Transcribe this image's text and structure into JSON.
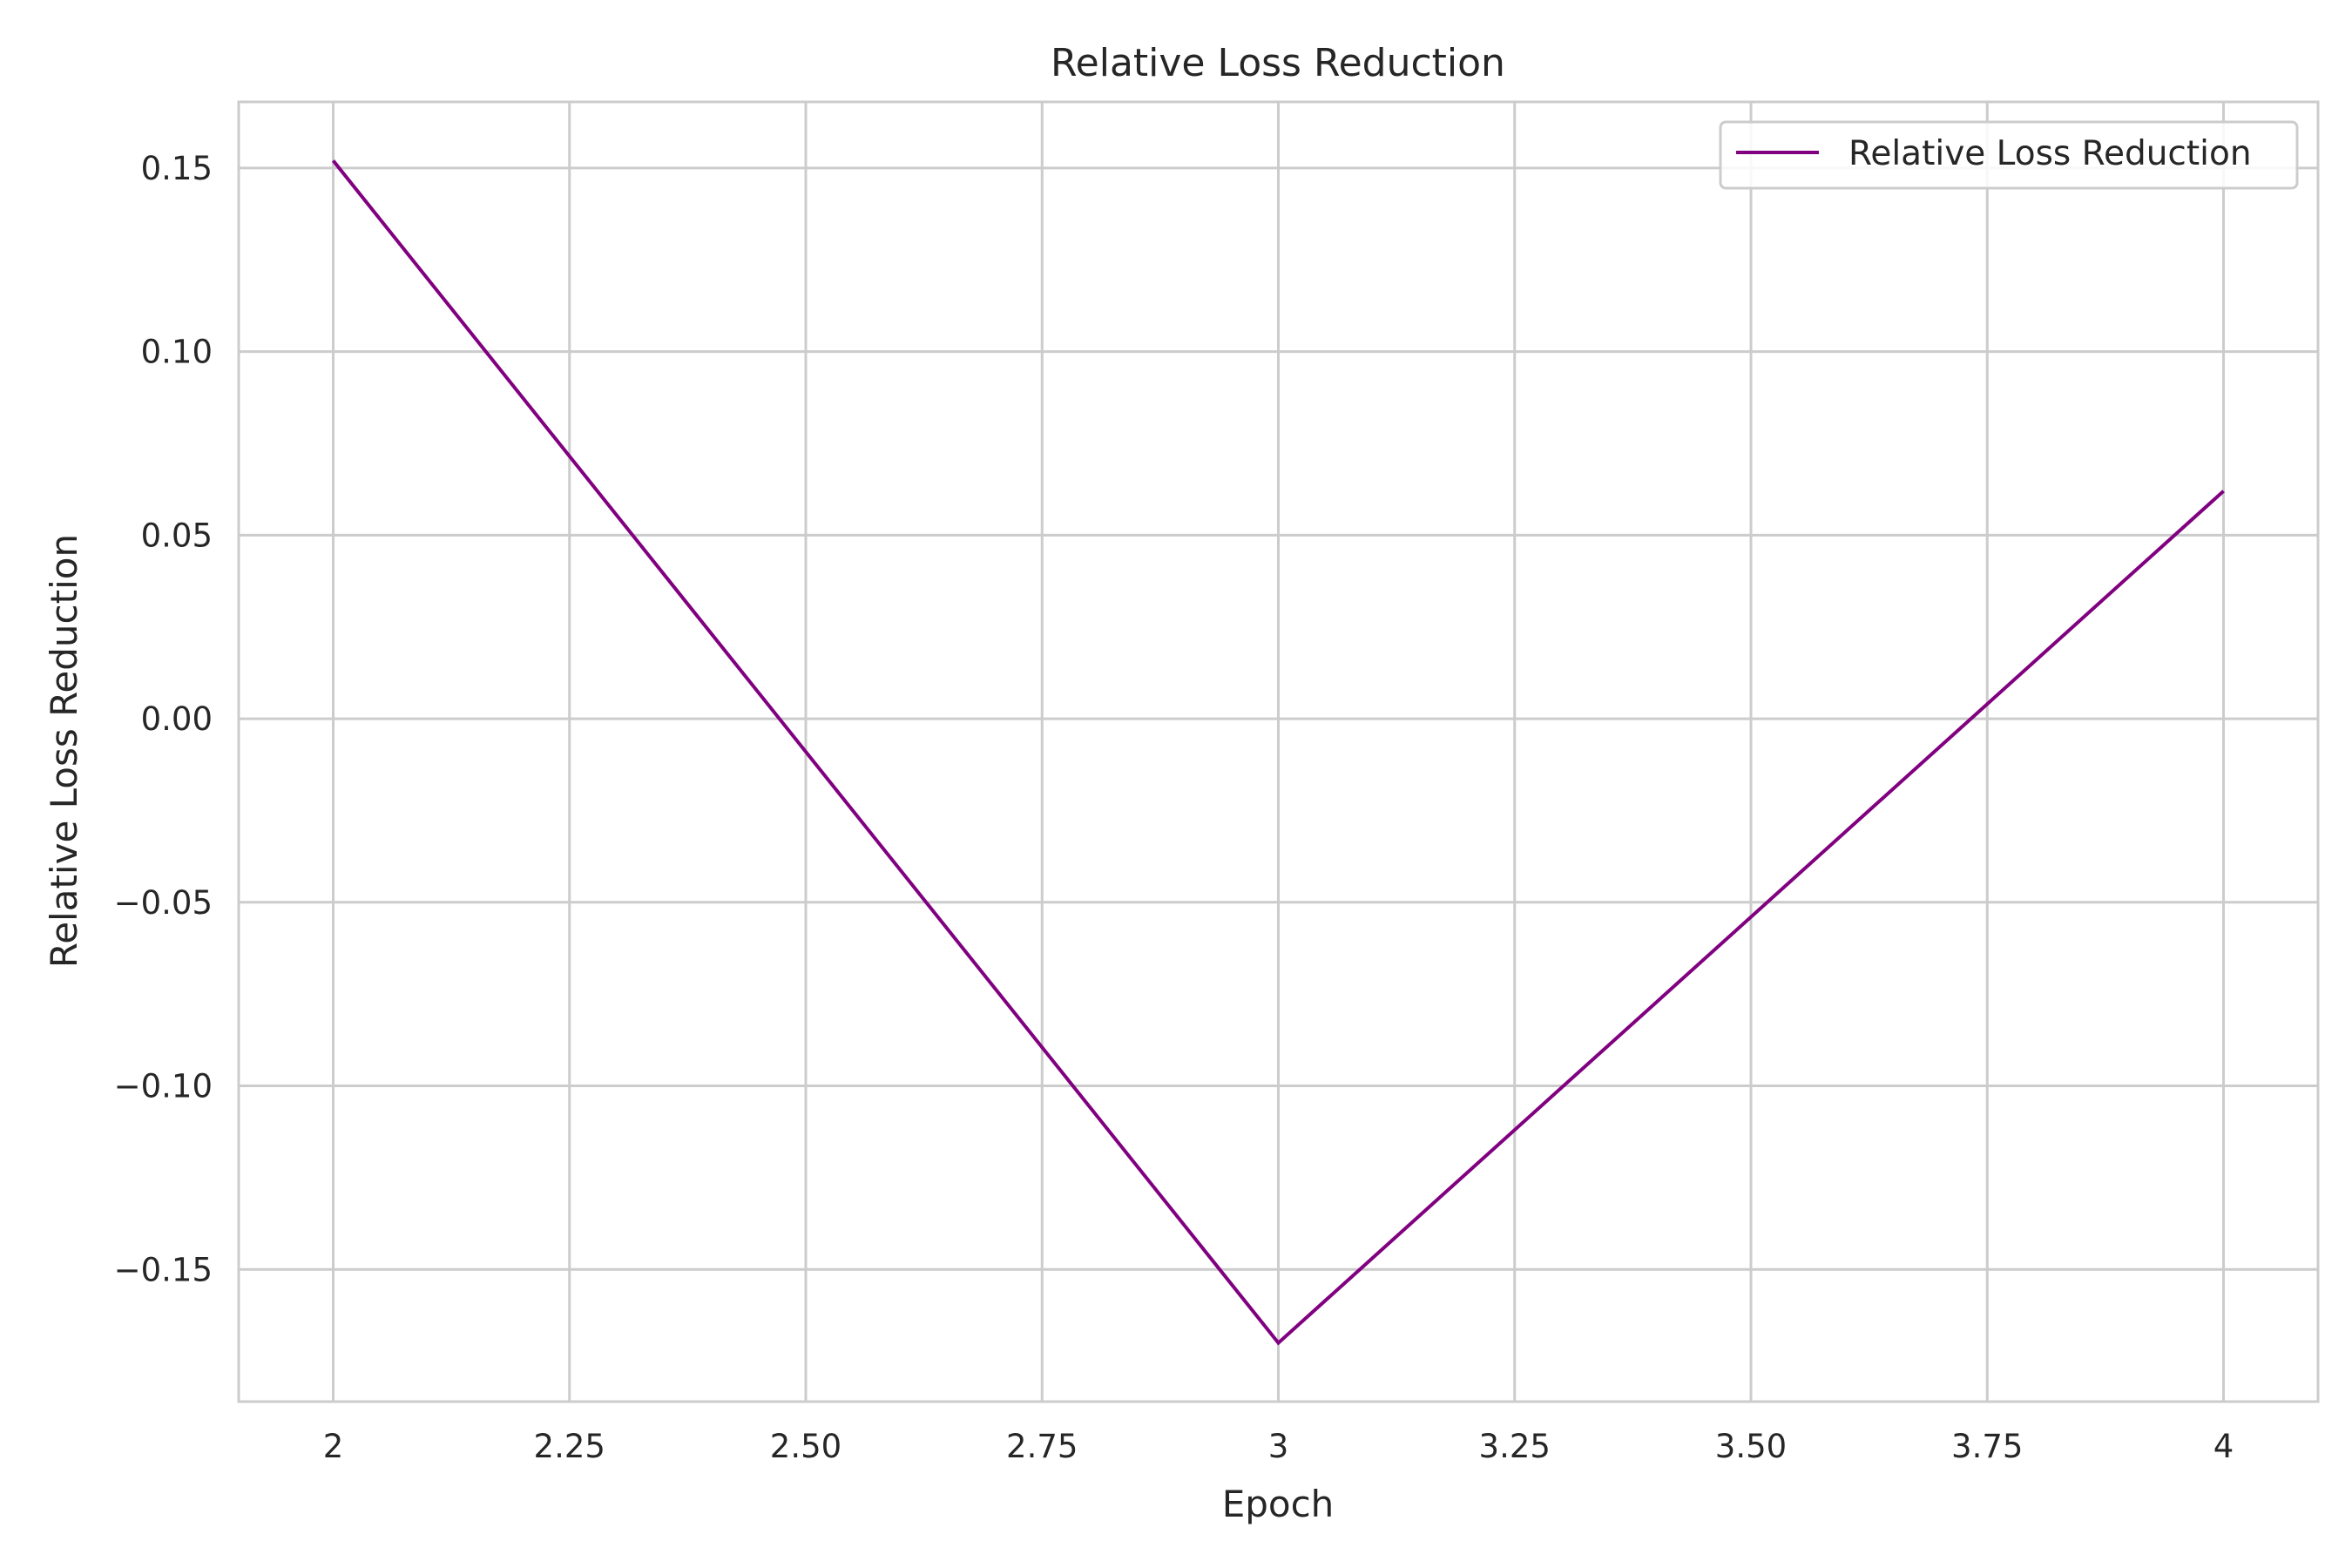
{
  "chart_data": {
    "type": "line",
    "title": "Relative Loss Reduction",
    "xlabel": "Epoch",
    "ylabel": "Relative Loss Reduction",
    "xlim": [
      1.9,
      4.1
    ],
    "ylim": [
      -0.186,
      0.168
    ],
    "xticks": [
      2,
      2.25,
      2.5,
      2.75,
      3,
      3.25,
      3.5,
      3.75,
      4
    ],
    "xtick_labels": [
      "2",
      "2.25",
      "2.50",
      "2.75",
      "3",
      "3.25",
      "3.50",
      "3.75",
      "4"
    ],
    "yticks": [
      0.15,
      0.1,
      0.05,
      0.0,
      -0.05,
      -0.1,
      -0.15
    ],
    "ytick_labels": [
      "0.15",
      "0.10",
      "0.05",
      "0.00",
      "−0.05",
      "−0.10",
      "−0.15"
    ],
    "grid": true,
    "legend_position": "top-right",
    "series": [
      {
        "name": "Relative Loss Reduction",
        "color": "#800080",
        "x": [
          2,
          3,
          4
        ],
        "y": [
          0.152,
          -0.17,
          0.062
        ]
      }
    ]
  }
}
